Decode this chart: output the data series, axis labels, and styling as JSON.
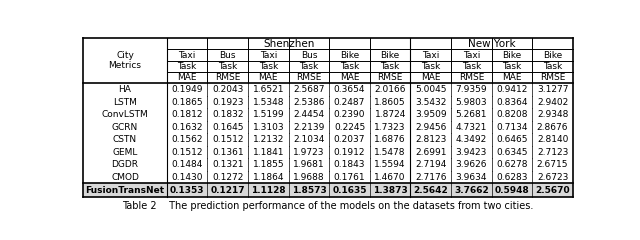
{
  "title": "Table 2    The prediction performance of the models on the datasets from two cities.",
  "models": [
    "HA",
    "LSTM",
    "ConvLSTM",
    "GCRN",
    "CSTN",
    "GEML",
    "DGDR",
    "CMOD"
  ],
  "data": [
    [
      "0.1949",
      "0.2043",
      "1.6521",
      "2.5687",
      "0.3654",
      "2.0166",
      "5.0045",
      "7.9359",
      "0.9412",
      "3.1277"
    ],
    [
      "0.1865",
      "0.1923",
      "1.5348",
      "2.5386",
      "0.2487",
      "1.8605",
      "3.5432",
      "5.9803",
      "0.8364",
      "2.9402"
    ],
    [
      "0.1812",
      "0.1832",
      "1.5199",
      "2.4454",
      "0.2390",
      "1.8724",
      "3.9509",
      "5.2681",
      "0.8208",
      "2.9348"
    ],
    [
      "0.1632",
      "0.1645",
      "1.3103",
      "2.2139",
      "0.2245",
      "1.7323",
      "2.9456",
      "4.7321",
      "0.7134",
      "2.8676"
    ],
    [
      "0.1562",
      "0.1512",
      "1.2132",
      "2.1034",
      "0.2037",
      "1.6876",
      "2.8123",
      "4.3492",
      "0.6465",
      "2.8140"
    ],
    [
      "0.1512",
      "0.1361",
      "1.1841",
      "1.9723",
      "0.1912",
      "1.5478",
      "2.6991",
      "3.9423",
      "0.6345",
      "2.7123"
    ],
    [
      "0.1484",
      "0.1321",
      "1.1855",
      "1.9681",
      "0.1843",
      "1.5594",
      "2.7194",
      "3.9626",
      "0.6278",
      "2.6715"
    ],
    [
      "0.1430",
      "0.1272",
      "1.1864",
      "1.9688",
      "0.1761",
      "1.4670",
      "2.7176",
      "3.9634",
      "0.6283",
      "2.6723"
    ]
  ],
  "fusion_row": [
    "FusionTransNet",
    "0.1353",
    "0.1217",
    "1.1128",
    "1.8573",
    "0.1635",
    "1.3873",
    "2.5642",
    "3.7662",
    "0.5948",
    "2.5670"
  ],
  "col_labels_r1": [
    "Taxi",
    "Bus",
    "Taxi",
    "Bus",
    "Bike",
    "Bike",
    "Taxi",
    "Taxi",
    "Bike",
    "Bike"
  ],
  "col_labels_r2": [
    "Task",
    "Task",
    "Task",
    "Task",
    "Task",
    "Task",
    "Task",
    "Task",
    "Task",
    "Task"
  ],
  "col_labels_r3": [
    "MAE",
    "RMSE",
    "MAE",
    "RMSE",
    "MAE",
    "RMSE",
    "MAE",
    "RMSE",
    "MAE",
    "RMSE"
  ]
}
